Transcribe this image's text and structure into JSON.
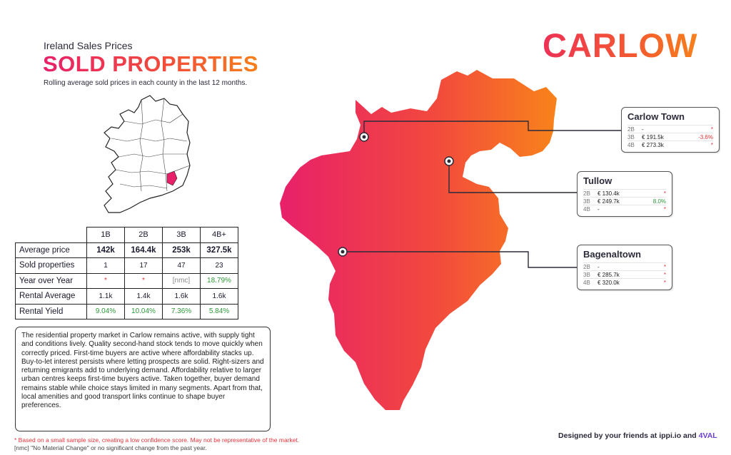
{
  "header": {
    "kicker": "Ireland Sales Prices",
    "title": "SOLD PROPERTIES",
    "subtitle": "Rolling average sold prices in each county in the last 12 months.",
    "county": "CARLOW"
  },
  "colors": {
    "gradient_start": "#e8206a",
    "gradient_mid": "#f24a3c",
    "gradient_end": "#f7801b",
    "positive": "#2f9a3a",
    "flag": "#e8333a"
  },
  "table": {
    "columns": [
      "1B",
      "2B",
      "3B",
      "4B+"
    ],
    "rows": [
      {
        "label": "Average price",
        "values": [
          "142k",
          "164.4k",
          "253k",
          "327.5k"
        ]
      },
      {
        "label": "Sold properties",
        "values": [
          "1",
          "17",
          "47",
          "23"
        ]
      },
      {
        "label": "Year over Year",
        "values": [
          "*",
          "*",
          "[nmc]",
          "18.79%"
        ]
      },
      {
        "label": "Rental Average",
        "values": [
          "1.1k",
          "1.4k",
          "1.6k",
          "1.6k"
        ]
      },
      {
        "label": "Rental Yield",
        "values": [
          "9.04%",
          "10.04%",
          "7.36%",
          "5.84%"
        ]
      }
    ]
  },
  "summary": "The residential property market in Carlow remains active, with supply tight and conditions lively. Quality second-hand stock tends to move quickly when correctly priced. First-time buyers are active where affordability stacks up. Buy-to-let interest persists where letting prospects are solid. Right-sizers and returning emigrants add to underlying demand. Affordability relative to larger urban centres keeps first-time buyers active. Taken together, buyer demand remains stable while choice stays limited in many segments. Apart from that, local amenities and good transport links continue to shape buyer preferences.",
  "callouts": [
    {
      "town": "Carlow Town",
      "rows": [
        {
          "bed": "2B",
          "price": "-",
          "change": "*"
        },
        {
          "bed": "3B",
          "price": "€ 191.5k",
          "change": "-3.6%"
        },
        {
          "bed": "4B",
          "price": "€ 273.3k",
          "change": "*"
        }
      ]
    },
    {
      "town": "Tullow",
      "rows": [
        {
          "bed": "2B",
          "price": "€ 130.4k",
          "change": "*"
        },
        {
          "bed": "3B",
          "price": "€ 249.7k",
          "change": "8.0%"
        },
        {
          "bed": "4B",
          "price": "-",
          "change": "*"
        }
      ]
    },
    {
      "town": "Bagenaltown",
      "rows": [
        {
          "bed": "2B",
          "price": "-",
          "change": "*"
        },
        {
          "bed": "3B",
          "price": "€ 285.7k",
          "change": "*"
        },
        {
          "bed": "4B",
          "price": "€ 320.0k",
          "change": "*"
        }
      ]
    }
  ],
  "footnotes": {
    "line1": "* Based on a small sample size, creating a low confidence score. May not be representative of the market.",
    "line2": "[nmc]  \"No Material Change\" or no significant change from the past year."
  },
  "credit": {
    "prefix": "Designed by your friends at",
    "site": "ippi.io",
    "and": "and",
    "partner": "4VAL"
  }
}
